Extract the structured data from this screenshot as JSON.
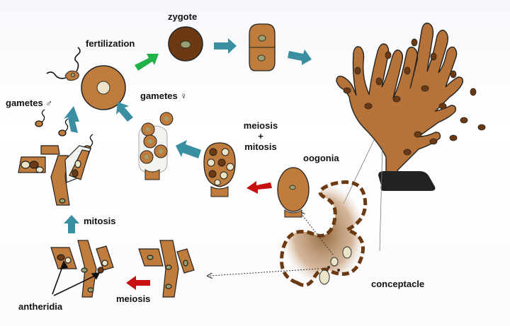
{
  "labels": {
    "zygote": "zygote",
    "fertilization": "fertilization",
    "gametes_male": "gametes ♂",
    "gametes_female": "gametes ♀",
    "meiosis_mitosis_1": "meiosis",
    "meiosis_mitosis_2": "+",
    "meiosis_mitosis_3": "mitosis",
    "oogonia": "oogonia",
    "mitosis": "mitosis",
    "meiosis": "meiosis",
    "antheridia": "antheridia",
    "conceptacle": "conceptacle"
  },
  "colors": {
    "cell_brown": "#c07c3c",
    "cell_dark": "#6b3a12",
    "nucleus": "#9aa070",
    "cycle_arrow": "#3a8fa0",
    "meiosis_arrow": "#c81010",
    "fertilization_arrow": "#22b24a",
    "thallus": "#b5733a",
    "holdfast": "#222222"
  }
}
